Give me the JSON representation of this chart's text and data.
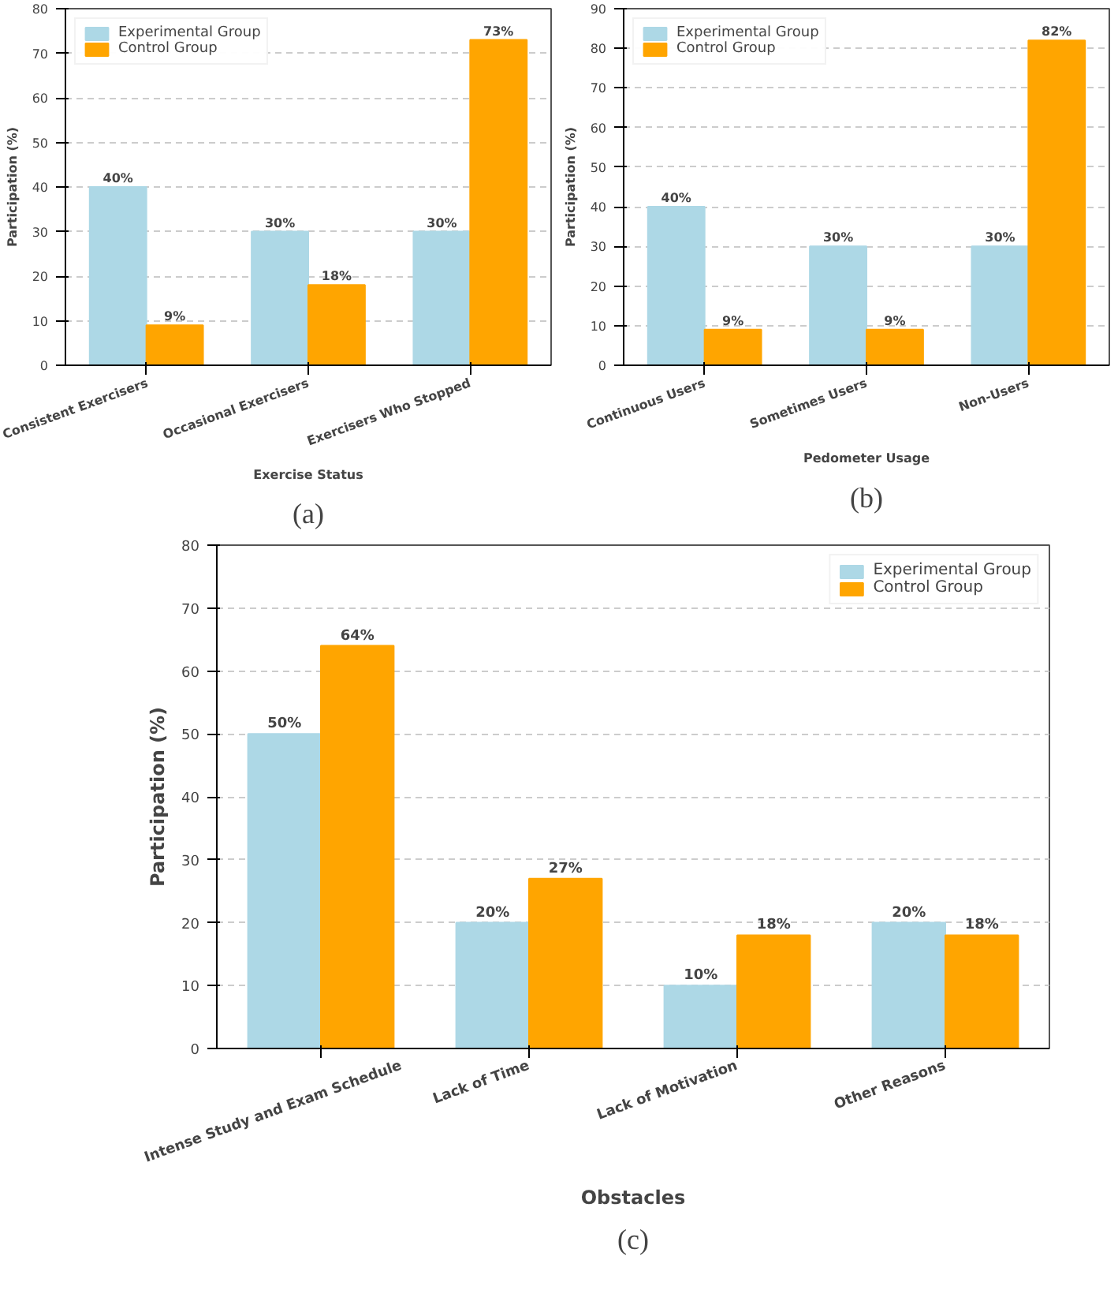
{
  "chart_data": [
    {
      "type": "bar",
      "xlabel": "Exercise Status",
      "ylabel": "Participation (%)",
      "categories": [
        "Consistent Exercisers",
        "Occasional Exercisers",
        "Exercisers Who Stopped"
      ],
      "series": [
        {
          "name": "Experimental Group",
          "color": "#add8e6",
          "values": [
            40,
            30,
            30
          ],
          "value_labels": [
            "40%",
            "30%",
            "30%"
          ]
        },
        {
          "name": "Control Group",
          "color": "#ffa500",
          "values": [
            9,
            18,
            73
          ],
          "value_labels": [
            "9%",
            "18%",
            "73%"
          ]
        }
      ],
      "ylim": [
        0,
        80
      ],
      "yticks": [
        0,
        10,
        20,
        30,
        40,
        50,
        60,
        70,
        80
      ],
      "grid": "y",
      "legend": "top left",
      "annotations": [
        "(a)"
      ]
    },
    {
      "type": "bar",
      "xlabel": "Pedometer Usage",
      "ylabel": "Participation (%)",
      "categories": [
        "Continuous Users",
        "Sometimes Users",
        "Non-Users"
      ],
      "series": [
        {
          "name": "Experimental Group",
          "color": "#add8e6",
          "values": [
            40,
            30,
            30
          ],
          "value_labels": [
            "40%",
            "30%",
            "30%"
          ]
        },
        {
          "name": "Control Group",
          "color": "#ffa500",
          "values": [
            9,
            9,
            82
          ],
          "value_labels": [
            "9%",
            "9%",
            "82%"
          ]
        }
      ],
      "ylim": [
        0,
        90
      ],
      "yticks": [
        0,
        10,
        20,
        30,
        40,
        50,
        60,
        70,
        80,
        90
      ],
      "grid": "y",
      "legend": "top left",
      "annotations": [
        "(b)"
      ]
    },
    {
      "type": "bar",
      "xlabel": "Obstacles",
      "ylabel": "Participation (%)",
      "categories": [
        "Intense Study and Exam Schedule",
        "Lack of Time",
        "Lack of Motivation",
        "Other Reasons"
      ],
      "series": [
        {
          "name": "Experimental Group",
          "color": "#add8e6",
          "values": [
            50,
            20,
            10,
            20
          ],
          "value_labels": [
            "50%",
            "20%",
            "10%",
            "20%"
          ]
        },
        {
          "name": "Control Group",
          "color": "#ffa500",
          "values": [
            64,
            27,
            18,
            18
          ],
          "value_labels": [
            "64%",
            "27%",
            "18%",
            "18%"
          ]
        }
      ],
      "ylim": [
        0,
        80
      ],
      "yticks": [
        0,
        10,
        20,
        30,
        40,
        50,
        60,
        70,
        80
      ],
      "grid": "y",
      "legend": "top right",
      "annotations": [
        "(c)"
      ]
    }
  ]
}
